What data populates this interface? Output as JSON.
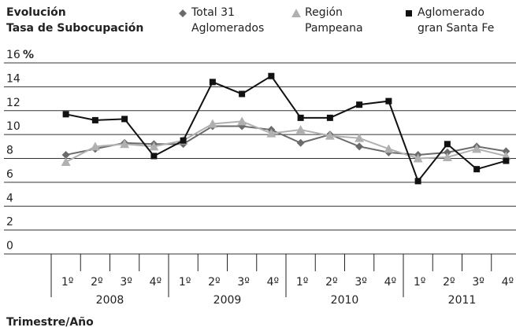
{
  "chart_data": {
    "type": "line",
    "title": "Evolución\nTasa de Subocupación",
    "x_label": "Trimestre/Año",
    "y_unit": "%",
    "categories": [
      "1º",
      "2º",
      "3º",
      "4º",
      "1º",
      "2º",
      "3º",
      "4º",
      "1º",
      "2º",
      "3º",
      "4º",
      "1º",
      "2º",
      "3º",
      "4º"
    ],
    "groups": [
      "2008",
      "2009",
      "2010",
      "2011"
    ],
    "ylim": [
      0,
      16
    ],
    "yticks": [
      0,
      2,
      4,
      6,
      8,
      10,
      12,
      14,
      16
    ],
    "grid": true,
    "series": [
      {
        "name": "Total 31\nAglomerados",
        "color": "#6b6b6b",
        "marker": "diamond",
        "values": [
          8.3,
          8.8,
          9.3,
          9.2,
          9.2,
          10.7,
          10.7,
          10.4,
          9.3,
          10.0,
          9.0,
          8.5,
          8.3,
          8.5,
          9.0,
          8.6
        ]
      },
      {
        "name": "Región\nPampeana",
        "color": "#b0b0b0",
        "marker": "triangle",
        "values": [
          7.7,
          9.0,
          9.2,
          9.0,
          9.5,
          10.9,
          11.1,
          10.1,
          10.4,
          9.9,
          9.7,
          8.8,
          8.0,
          8.1,
          8.8,
          8.2
        ]
      },
      {
        "name": "Aglomerado\ngran Santa Fe",
        "color": "#111111",
        "marker": "square",
        "values": [
          11.7,
          11.2,
          11.3,
          8.2,
          9.5,
          14.4,
          13.4,
          14.9,
          11.4,
          11.4,
          12.5,
          12.8,
          6.1,
          9.2,
          7.1,
          7.8
        ]
      }
    ]
  }
}
